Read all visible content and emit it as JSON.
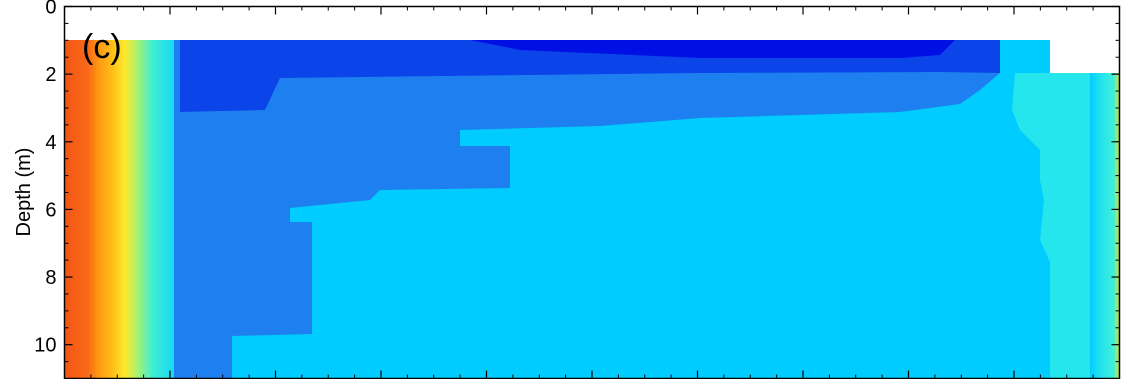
{
  "chart_data": {
    "type": "heatmap",
    "panel_label": "(c)",
    "ylabel": "Depth (m)",
    "xlabel": "",
    "ylim": [
      0,
      11
    ],
    "y_inverted": true,
    "y_ticks": [
      0,
      2,
      4,
      6,
      8,
      10
    ],
    "y_tick_labels": [
      "0",
      "2",
      "4",
      "6",
      "8",
      "10"
    ],
    "x_tick_labels_shown": false,
    "colorbar_shown": false,
    "colormap": "jet",
    "regions": [
      {
        "name": "surface-gap-left",
        "level": null,
        "depth_top": 0,
        "depth_bottom": 1,
        "x_from": 0,
        "x_to": 0.9,
        "color": "#ffffff"
      },
      {
        "name": "surface-gap-right",
        "level": null,
        "depth_top": 0,
        "depth_bottom": 2,
        "x_from": 0.9,
        "x_to": 1.0,
        "color": "#ffffff"
      },
      {
        "name": "left-warm-band",
        "level": 0.85,
        "depth_top": 1,
        "depth_bottom": 11,
        "x_from": 0.0,
        "x_to": 0.025,
        "color": "#f65a1a"
      },
      {
        "name": "left-orange-band",
        "level": 0.75,
        "depth_top": 1,
        "depth_bottom": 11,
        "x_from": 0.025,
        "x_to": 0.04,
        "color": "#ff9a12"
      },
      {
        "name": "left-yellow-band",
        "level": 0.62,
        "depth_top": 1,
        "depth_bottom": 11,
        "x_from": 0.04,
        "x_to": 0.055,
        "color": "#ffe21c"
      },
      {
        "name": "left-green-band",
        "level": 0.45,
        "depth_top": 1,
        "depth_bottom": 11,
        "x_from": 0.055,
        "x_to": 0.07,
        "color": "#a8f06c"
      },
      {
        "name": "left-cyan-band",
        "level": 0.35,
        "depth_top": 1,
        "depth_bottom": 11,
        "x_from": 0.07,
        "x_to": 0.1,
        "color": "#2ef0d8"
      },
      {
        "name": "mid-light-blue",
        "level": 0.3,
        "depth_top": 1,
        "depth_bottom": 11,
        "x_from": 0.1,
        "x_to": 0.94,
        "color": "#00ccff"
      },
      {
        "name": "mid-blue",
        "level": 0.2,
        "depth_top": 1,
        "depth_bottom": 11,
        "x_from": 0.1,
        "x_to": 0.9,
        "color": "#1e80f0"
      },
      {
        "name": "top-dark-blue",
        "level": 0.08,
        "depth_top": 1,
        "depth_bottom": 2,
        "x_from": 0.1,
        "x_to": 0.9,
        "color": "#0a44e8"
      },
      {
        "name": "top-darkest-blue",
        "level": 0.02,
        "depth_top": 1,
        "depth_bottom": 1.6,
        "x_from": 0.39,
        "x_to": 0.85,
        "color": "#0010e6"
      },
      {
        "name": "right-cyan-band",
        "level": 0.38,
        "depth_top": 2,
        "depth_bottom": 11,
        "x_from": 0.92,
        "x_to": 0.99,
        "color": "#1ee6f0"
      },
      {
        "name": "right-green-band",
        "level": 0.55,
        "depth_top": 2,
        "depth_bottom": 11,
        "x_from": 0.99,
        "x_to": 1.0,
        "color": "#b4d83a"
      }
    ],
    "grid": false
  }
}
